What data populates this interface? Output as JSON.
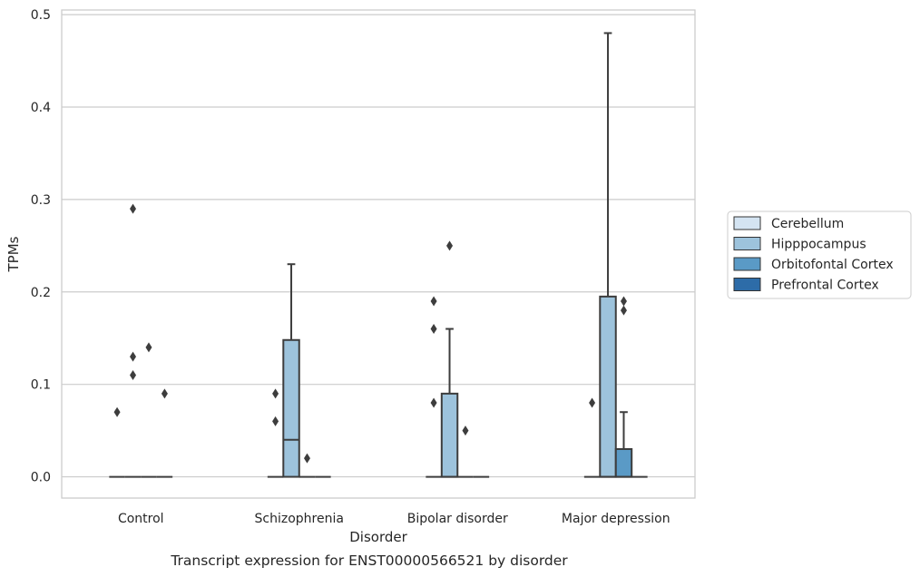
{
  "chart_data": {
    "type": "box",
    "xlabel": "Disorder",
    "ylabel": "TPMs",
    "caption": "Transcript expression for ENST00000566521 by disorder",
    "ylim": [
      -0.023,
      0.505
    ],
    "yticks": [
      "0.0",
      "0.1",
      "0.2",
      "0.3",
      "0.4",
      "0.5"
    ],
    "grid": "horizontal",
    "legend_position": "right",
    "categories": [
      "Control",
      "Schizophrenia",
      "Bipolar disorder",
      "Major depression"
    ],
    "series": [
      {
        "name": "Cerebellum",
        "color": "#d4e4f2",
        "boxes": [
          {
            "q1": 0,
            "median": 0,
            "q3": 0,
            "whisker_low": 0,
            "whisker_high": 0,
            "outliers": [
              0.07
            ]
          },
          {
            "q1": 0,
            "median": 0,
            "q3": 0,
            "whisker_low": 0,
            "whisker_high": 0,
            "outliers": [
              0.06,
              0.09
            ]
          },
          {
            "q1": 0,
            "median": 0,
            "q3": 0,
            "whisker_low": 0,
            "whisker_high": 0,
            "outliers": [
              0.08,
              0.16,
              0.19
            ]
          },
          {
            "q1": 0,
            "median": 0,
            "q3": 0,
            "whisker_low": 0,
            "whisker_high": 0,
            "outliers": [
              0.08
            ]
          }
        ]
      },
      {
        "name": "Hipppocampus",
        "color": "#9dc3dc",
        "boxes": [
          {
            "q1": 0,
            "median": 0,
            "q3": 0,
            "whisker_low": 0,
            "whisker_high": 0,
            "outliers": [
              0.11,
              0.13,
              0.29
            ]
          },
          {
            "q1": 0,
            "median": 0.04,
            "q3": 0.148,
            "whisker_low": 0,
            "whisker_high": 0.23,
            "outliers": []
          },
          {
            "q1": 0,
            "median": 0,
            "q3": 0.09,
            "whisker_low": 0,
            "whisker_high": 0.16,
            "outliers": [
              0.25
            ]
          },
          {
            "q1": 0,
            "median": 0,
            "q3": 0.195,
            "whisker_low": 0,
            "whisker_high": 0.48,
            "outliers": []
          }
        ]
      },
      {
        "name": "Orbitofontal Cortex",
        "color": "#5a9ac6",
        "boxes": [
          {
            "q1": 0,
            "median": 0,
            "q3": 0,
            "whisker_low": 0,
            "whisker_high": 0,
            "outliers": [
              0.14
            ]
          },
          {
            "q1": 0,
            "median": 0,
            "q3": 0,
            "whisker_low": 0,
            "whisker_high": 0,
            "outliers": [
              0.02
            ]
          },
          {
            "q1": 0,
            "median": 0,
            "q3": 0,
            "whisker_low": 0,
            "whisker_high": 0,
            "outliers": [
              0.05
            ]
          },
          {
            "q1": 0,
            "median": 0,
            "q3": 0.03,
            "whisker_low": 0,
            "whisker_high": 0.07,
            "outliers": [
              0.18,
              0.19
            ]
          }
        ]
      },
      {
        "name": "Prefrontal Cortex",
        "color": "#2d6ca8",
        "boxes": [
          {
            "q1": 0,
            "median": 0,
            "q3": 0,
            "whisker_low": 0,
            "whisker_high": 0,
            "outliers": [
              0.09
            ]
          },
          {
            "q1": 0,
            "median": 0,
            "q3": 0,
            "whisker_low": 0,
            "whisker_high": 0,
            "outliers": []
          },
          {
            "q1": 0,
            "median": 0,
            "q3": 0,
            "whisker_low": 0,
            "whisker_high": 0,
            "outliers": []
          },
          {
            "q1": 0,
            "median": 0,
            "q3": 0,
            "whisker_low": 0,
            "whisker_high": 0,
            "outliers": []
          }
        ]
      }
    ]
  }
}
